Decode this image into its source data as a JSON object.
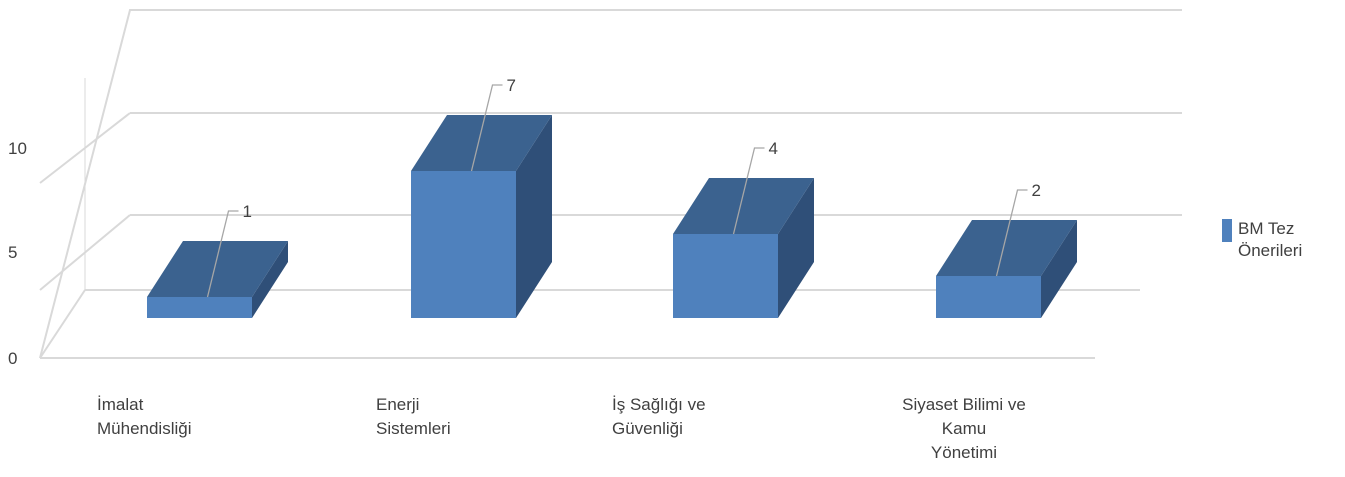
{
  "chart_data": {
    "type": "bar",
    "categories": [
      [
        "İmalat",
        "Mühendisliği"
      ],
      [
        "Enerji",
        "Sistemleri"
      ],
      [
        "İş Sağlığı ve",
        "Güvenliği"
      ],
      [
        "Siyaset Bilimi ve",
        "Kamu",
        "Yönetimi"
      ]
    ],
    "series": [
      {
        "name": "BM Tez Önerileri",
        "values": [
          1,
          7,
          4,
          2
        ]
      }
    ],
    "yticks": [
      "0",
      "5",
      "10"
    ],
    "ylim": [
      0,
      10
    ],
    "grid": true,
    "legend": {
      "position": "right",
      "lines": [
        "BM Tez",
        "Önerileri"
      ]
    },
    "colors": {
      "front": "#4F81BD",
      "top": "#3B628F",
      "side": "#2F4F78",
      "grid": "#D9D9D9",
      "leader": "#A6A6A6",
      "text": "#404040"
    }
  }
}
